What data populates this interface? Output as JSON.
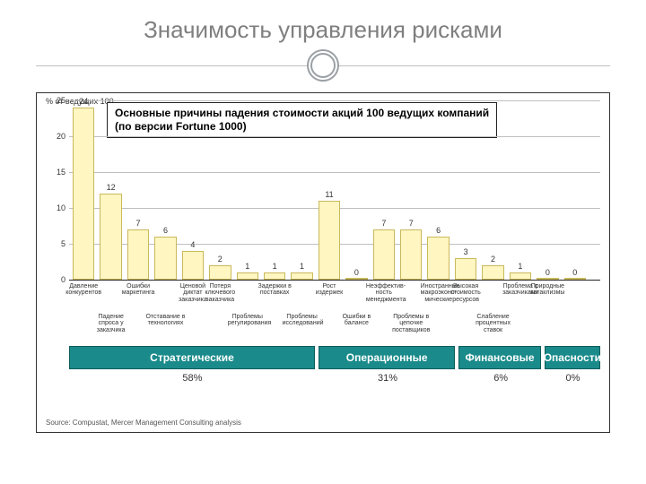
{
  "title": "Значимость управления рисками",
  "chart": {
    "type": "bar",
    "y_axis_label": "% от ведущих 100",
    "title_line1": "Основные причины падения стоимости акций 100 ведущих компаний",
    "title_line2": "(по версии Fortune 1000)",
    "ylim_max": 25,
    "y_ticks": [
      0,
      5,
      10,
      15,
      20,
      25
    ],
    "bar_color": "#fff6c2",
    "bar_border": "#c9b95a",
    "grid_color": "#bfbfbf",
    "bars": [
      {
        "v": 24,
        "top": "Давление конкурентов"
      },
      {
        "v": 12,
        "bot": "Падение спроса у заказчика"
      },
      {
        "v": 7,
        "top": "Ошибки маркетинга"
      },
      {
        "v": 6,
        "bot": "Отставание в технологиях"
      },
      {
        "v": 4,
        "top": "Ценовой диктат заказчика"
      },
      {
        "v": 2,
        "top": "Потеря ключевого заказчика"
      },
      {
        "v": 1,
        "bot": "Проблемы регулирования"
      },
      {
        "v": 1,
        "top": "Задержки в поставках"
      },
      {
        "v": 1,
        "bot": "Проблемы исследований"
      },
      {
        "v": 11,
        "top": "Рост издержек"
      },
      {
        "v": 0,
        "bot": "Ошибки в балансе"
      },
      {
        "v": 7,
        "top": "Неэффектив-ность менеджмента"
      },
      {
        "v": 7,
        "bot": "Проблемы в цепочке поставщиков"
      },
      {
        "v": 6,
        "top": "Иностранные макроэконо-мические"
      },
      {
        "v": 3,
        "top": "Высокая стоимость ресурсов"
      },
      {
        "v": 2,
        "bot": "Слабление процентных ставок"
      },
      {
        "v": 1,
        "top": "Проблема с заказчиками"
      },
      {
        "v": 0,
        "top": "Природные катаклизмы"
      },
      {
        "v": 0,
        "top": ""
      }
    ],
    "categories": [
      {
        "label": "Стратегические",
        "pct": "58%",
        "span": 9
      },
      {
        "label": "Операционные",
        "pct": "31%",
        "span": 5
      },
      {
        "label": "Финансовые",
        "pct": "6%",
        "span": 3
      },
      {
        "label": "Опасности",
        "pct": "0%",
        "span": 2
      }
    ],
    "source": "Source: Compustat, Mercer Management Consulting analysis"
  }
}
